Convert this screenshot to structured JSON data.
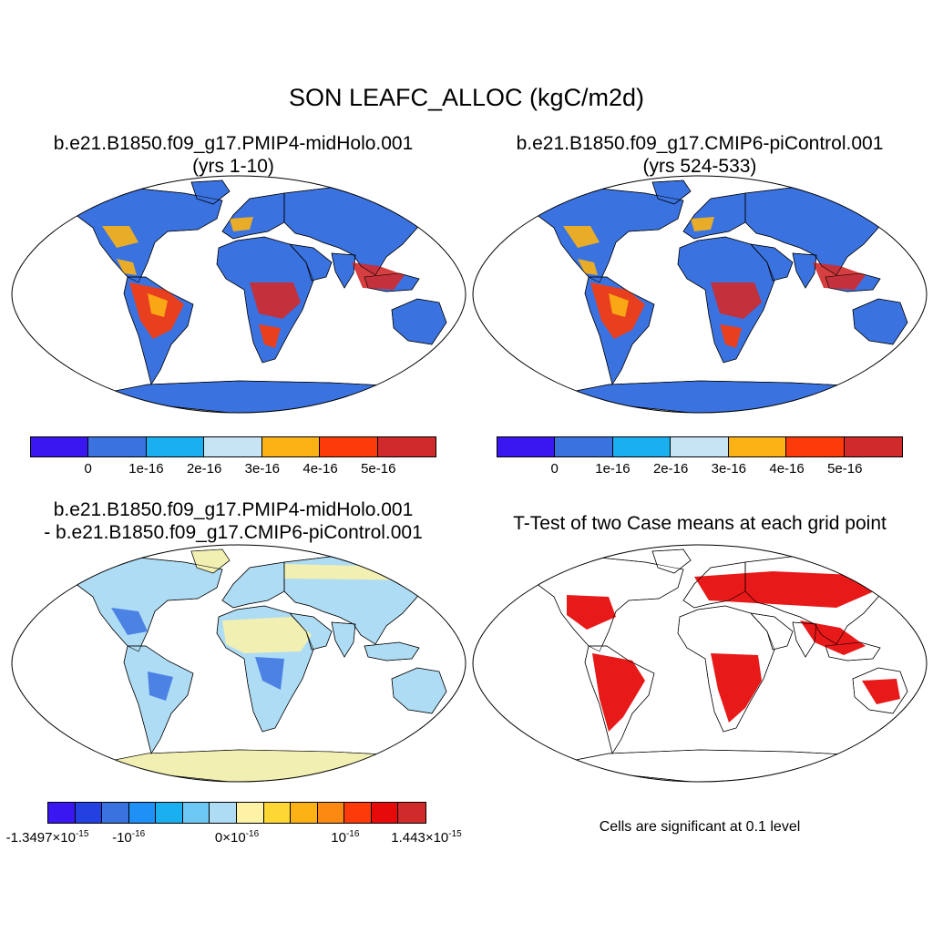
{
  "figure_title": "SON LEAFC_ALLOC (kgC/m2d)",
  "panels": [
    {
      "title_line1": "b.e21.B1850.f09_g17.PMIP4-midHolo.001",
      "title_line2": "(yrs 1-10)"
    },
    {
      "title_line1": "b.e21.B1850.f09_g17.CMIP6-piControl.001",
      "title_line2": "(yrs 524-533)"
    },
    {
      "title_line1": "b.e21.B1850.f09_g17.PMIP4-midHolo.001",
      "title_line2": "- b.e21.B1850.f09_g17.CMIP6-piControl.001"
    },
    {
      "title_line1": "T-Test of two Case means at each grid point",
      "title_line2": ""
    }
  ],
  "colorbar_case": {
    "colors": [
      "#3a17f0",
      "#3a72e0",
      "#1ab0f0",
      "#c6e4f4",
      "#fcb214",
      "#fc3a0a",
      "#d12a2a"
    ],
    "labels": [
      "0",
      "1e-16",
      "2e-16",
      "3e-16",
      "4e-16",
      "5e-16"
    ]
  },
  "colorbar_diff": {
    "colors": [
      "#3a17f0",
      "#2340e0",
      "#3a72e0",
      "#1e90f6",
      "#1ab0f0",
      "#6cc7f2",
      "#aedcf4",
      "#fdf2a6",
      "#fdd835",
      "#fcb214",
      "#fc8a12",
      "#fc3a0a",
      "#e60a0a",
      "#d12a2a"
    ],
    "labels": [
      {
        "base": "-1.3497",
        "exp": "-15",
        "mult": true
      },
      {
        "base": "-10",
        "exp": "-16",
        "mult": false
      },
      {
        "base": "0",
        "exp": "-16",
        "mult": true
      },
      {
        "base": "10",
        "exp": "-16",
        "mult": false
      },
      {
        "base": "1.443",
        "exp": "-15",
        "mult": true
      }
    ]
  },
  "significance_note": "Cells are significant at 0.1 level",
  "colors": {
    "land_base_case": "#3a72e0",
    "land_base_diff": "#aedcf4",
    "desert_diff": "#fdf2a6",
    "signif": "#e60000",
    "tropic_high": "#d12a2a",
    "tropic_mid": "#fc3a0a",
    "warm": "#fcb214"
  }
}
